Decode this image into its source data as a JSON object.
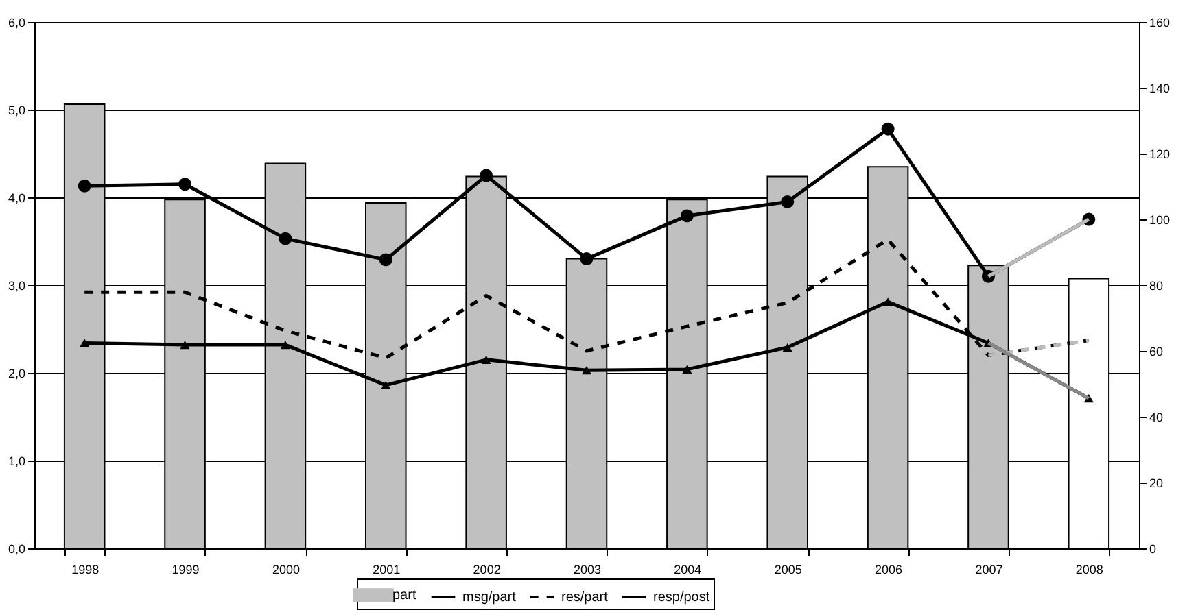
{
  "chart_data": {
    "type": "bar",
    "categories": [
      "1998",
      "1999",
      "2000",
      "2001",
      "2002",
      "2003",
      "2004",
      "2005",
      "2006",
      "2007",
      "2008"
    ],
    "series": [
      {
        "name": "part",
        "axis": "y2",
        "colors": [
          "#c0c0c0",
          "#c0c0c0",
          "#c0c0c0",
          "#c0c0c0",
          "#c0c0c0",
          "#c0c0c0",
          "#c0c0c0",
          "#c0c0c0",
          "#c0c0c0",
          "#c0c0c0",
          "#ffffff"
        ],
        "values": [
          135,
          106,
          117,
          105,
          113,
          88,
          106,
          113,
          116,
          86,
          82
        ]
      },
      {
        "name": "msg/part",
        "type": "line",
        "color": "#000000",
        "marker": "circle",
        "line_style": "solid",
        "values": [
          4.13,
          4.15,
          3.53,
          3.29,
          4.25,
          3.3,
          3.79,
          3.95,
          4.78,
          3.1,
          3.75
        ]
      },
      {
        "name": "res/part",
        "type": "line",
        "color": "#000000",
        "marker": "none",
        "line_style": "dashed",
        "values": [
          2.92,
          2.92,
          2.48,
          2.17,
          2.88,
          2.25,
          2.53,
          2.8,
          3.52,
          2.2,
          2.37
        ]
      },
      {
        "name": "resp/post",
        "type": "line",
        "color": "#000000",
        "marker": "triangle",
        "line_style": "solid",
        "values": [
          2.34,
          2.32,
          2.32,
          1.86,
          2.15,
          2.03,
          2.04,
          2.29,
          2.81,
          2.34,
          1.71
        ]
      },
      {
        "type": "line",
        "color": "#bbbbbb",
        "marker": "none",
        "line_style": "solid",
        "values": [
          null,
          null,
          null,
          null,
          null,
          null,
          null,
          null,
          null,
          3.1,
          3.75
        ]
      },
      {
        "type": "line",
        "color": "#bbbbbb",
        "marker": "none",
        "line_style": "dashed",
        "values": [
          null,
          null,
          null,
          null,
          null,
          null,
          null,
          null,
          null,
          2.2,
          2.37
        ]
      },
      {
        "type": "line",
        "color": "#888888",
        "marker": "none",
        "line_style": "solid",
        "values": [
          null,
          null,
          null,
          null,
          null,
          null,
          null,
          null,
          null,
          2.34,
          1.71
        ]
      }
    ],
    "ylim": [
      0,
      6
    ],
    "yticks": [
      {
        "value": 0,
        "label": "0,0"
      },
      {
        "value": 1,
        "label": "1,0"
      },
      {
        "value": 2,
        "label": "2,0"
      },
      {
        "value": 3,
        "label": "3,0"
      },
      {
        "value": 4,
        "label": "4,0"
      },
      {
        "value": 5,
        "label": "5,0"
      },
      {
        "value": 6,
        "label": "6,0"
      }
    ],
    "y2lim": [
      0,
      160
    ],
    "y2ticks": [
      0,
      20,
      40,
      60,
      80,
      100,
      120,
      140,
      160
    ],
    "grid": "y",
    "legend": "bottom"
  }
}
